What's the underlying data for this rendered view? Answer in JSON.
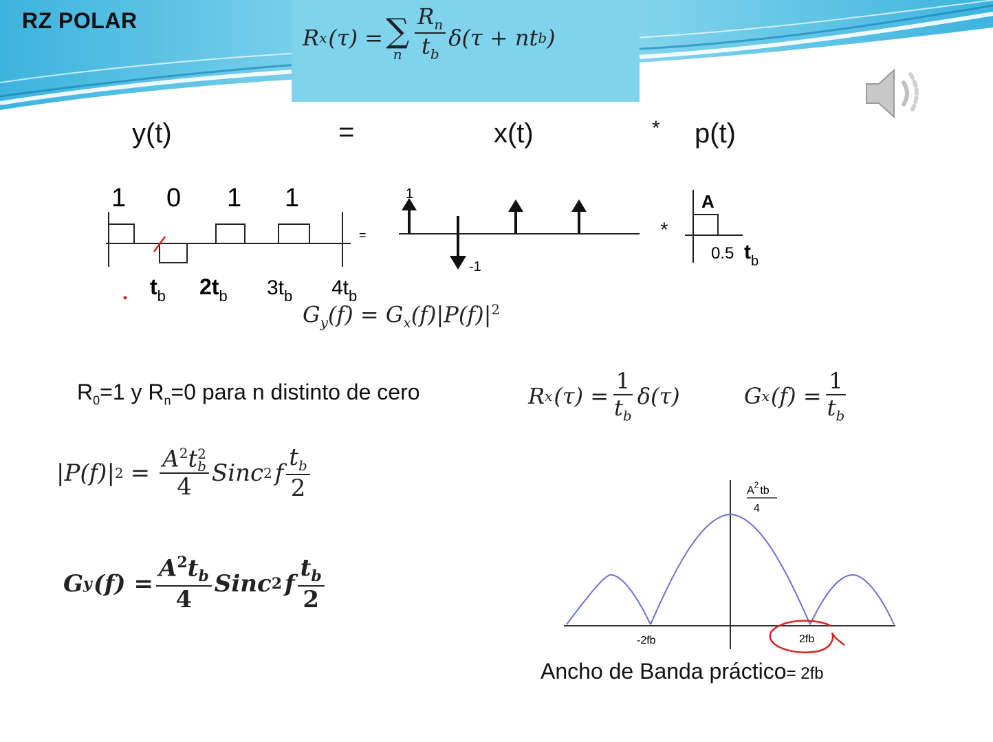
{
  "slide": {
    "title": "RZ POLAR",
    "speaker_icon": "speaker-icon"
  },
  "top_formula": {
    "lhs": "R",
    "lhs_sub": "x",
    "lhs_arg": "(τ) =",
    "sum": "∑",
    "sum_index": "n",
    "num": "R",
    "num_sub": "n",
    "den": "t",
    "den_sub": "b",
    "tail": "δ(τ + nt",
    "tail_sub": "b",
    "tail_end": ")"
  },
  "equation_row": {
    "y": "y(t)",
    "eq": "=",
    "x": "x(t)",
    "star": "*",
    "p": "p(t)"
  },
  "signal_y": {
    "bits": [
      "1",
      "0",
      "1",
      "1"
    ],
    "ticks": [
      "t",
      "2t",
      "3t",
      "4t"
    ],
    "tick_sub": "b",
    "eq": "="
  },
  "signal_x": {
    "up": "1",
    "down": "-1",
    "star": "*"
  },
  "signal_p": {
    "amp": "A",
    "width": "0.5",
    "t": "t",
    "t_sub": "b"
  },
  "gy_relation": {
    "text_1": "G",
    "sub_1": "y",
    "text_2": "(f) = G",
    "sub_2": "x",
    "text_3": "(f)|P(f)|",
    "sup": "2"
  },
  "r_condition": {
    "r": "R",
    "r_sub": "0",
    "text_1": "=1  y R",
    "rn_sub": "n",
    "text_2": "=0 para n distinto de cero"
  },
  "rx_result": {
    "lhs": "R",
    "lhs_sub": "x",
    "lhs_arg": "(τ) =",
    "num": "1",
    "den": "t",
    "den_sub": "b",
    "tail": "δ(τ)"
  },
  "gx_result": {
    "lhs": "G",
    "lhs_sub": "x",
    "lhs_arg": "(f) =",
    "num": "1",
    "den": "t",
    "den_sub": "b"
  },
  "pf_formula": {
    "lhs": "|P(f)|",
    "lhs_sup": "2",
    "eq": "=",
    "num": "A",
    "num_sup": "2",
    "num_t": "t",
    "num_t_sup": "2",
    "num_t_sub": "b",
    "den": "4",
    "sinc": "Sinc",
    "sinc_sup": "2",
    "f": "f",
    "num2": "t",
    "num2_sub": "b",
    "den2": "2"
  },
  "gy_formula": {
    "lhs": "G",
    "lhs_sub": "y",
    "lhs_arg": "(f) =",
    "num": "A",
    "num_sup": "2",
    "num_t": "t",
    "num_t_sub": "b",
    "den": "4",
    "sinc": "Sinc",
    "sinc_sup": "2",
    "f": "f",
    "num2": "t",
    "num2_sub": "b",
    "den2": "2"
  },
  "spectrum_plot": {
    "peak_num": "A",
    "peak_sup": "2",
    "peak_t": "tb",
    "peak_den": "4",
    "neg_label": "-2fb",
    "pos_label": "2fb",
    "curve_color": "#6b6fcf",
    "highlight_color": "#e02020"
  },
  "bandwidth_note": {
    "text": "Ancho de Banda práctico",
    "value": "= 2fb"
  }
}
